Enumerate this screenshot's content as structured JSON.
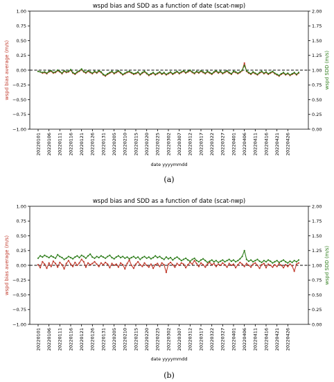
{
  "chart_data": [
    {
      "type": "line",
      "caption": "(a)",
      "title": "wspd bias and SDD as a function of date (scat-nwp)",
      "xlabel": "date yyyymmdd",
      "ylabel": "wspd bias average (m/s)",
      "ylabel_right": "wspd SDD (m/s)",
      "ylim": [
        -1.0,
        1.0
      ],
      "ylim_right": [
        0.0,
        2.0
      ],
      "yticks": [
        "1.00",
        "0.75",
        "0.50",
        "0.25",
        "0.00",
        "−0.25",
        "−0.50",
        "−0.75",
        "−1.00"
      ],
      "yticks_right": [
        "2.00",
        "1.75",
        "1.50",
        "1.25",
        "1.00",
        "0.75",
        "0.50",
        "0.25",
        "0.00"
      ],
      "xticks": [
        "20220101",
        "20220106",
        "20220111",
        "20220116",
        "20220121",
        "20220126",
        "20220131",
        "20220205",
        "20220210",
        "20220215",
        "20220220",
        "20220225",
        "20220302",
        "20220307",
        "20220312",
        "20220317",
        "20220322",
        "20220327",
        "20220401",
        "20220406",
        "20220411",
        "20220416",
        "20220421",
        "20220426"
      ],
      "x_range_days": 120,
      "zero_line": 0.0,
      "series": [
        {
          "axis": "left",
          "color": "#c0392b",
          "marker": "dot",
          "values": [
            -0.02,
            -0.03,
            -0.05,
            -0.04,
            -0.06,
            -0.03,
            -0.02,
            -0.05,
            -0.04,
            -0.01,
            -0.03,
            -0.06,
            -0.02,
            -0.04,
            -0.03,
            0.0,
            -0.05,
            -0.07,
            -0.04,
            -0.02,
            0.01,
            -0.03,
            -0.05,
            -0.02,
            -0.04,
            -0.06,
            -0.03,
            -0.05,
            -0.02,
            -0.04,
            -0.08,
            -0.1,
            -0.07,
            -0.05,
            -0.03,
            -0.06,
            -0.04,
            -0.02,
            -0.05,
            -0.08,
            -0.06,
            -0.04,
            -0.03,
            -0.05,
            -0.07,
            -0.06,
            -0.04,
            -0.08,
            -0.05,
            -0.03,
            -0.06,
            -0.09,
            -0.07,
            -0.05,
            -0.08,
            -0.06,
            -0.04,
            -0.07,
            -0.05,
            -0.08,
            -0.06,
            -0.04,
            -0.07,
            -0.05,
            -0.03,
            -0.06,
            -0.04,
            -0.02,
            -0.05,
            -0.03,
            -0.01,
            -0.04,
            -0.06,
            -0.03,
            -0.05,
            -0.02,
            -0.04,
            -0.06,
            -0.03,
            -0.05,
            -0.07,
            -0.04,
            -0.02,
            -0.05,
            -0.03,
            -0.06,
            -0.04,
            -0.02,
            -0.05,
            -0.07,
            -0.03,
            -0.04,
            -0.06,
            -0.04,
            -0.01,
            0.12,
            -0.02,
            -0.05,
            -0.07,
            -0.04,
            -0.06,
            -0.08,
            -0.05,
            -0.03,
            -0.06,
            -0.04,
            -0.07,
            -0.05,
            -0.03,
            -0.06,
            -0.08,
            -0.1,
            -0.07,
            -0.05,
            -0.08,
            -0.06,
            -0.09,
            -0.07,
            -0.05,
            -0.08,
            -0.05
          ]
        },
        {
          "axis": "right",
          "color": "#2e7d1b",
          "marker": "dot",
          "values": [
            0.98,
            0.97,
            0.96,
            0.97,
            0.95,
            0.98,
            0.99,
            0.96,
            0.97,
            1.0,
            0.98,
            0.95,
            0.99,
            0.97,
            0.98,
            1.01,
            0.96,
            0.94,
            0.97,
            0.99,
            1.02,
            0.98,
            0.96,
            0.99,
            0.97,
            0.95,
            0.98,
            0.96,
            0.99,
            0.97,
            0.93,
            0.91,
            0.94,
            0.96,
            0.98,
            0.95,
            0.97,
            0.99,
            0.96,
            0.93,
            0.95,
            0.97,
            0.98,
            0.96,
            0.94,
            0.95,
            0.97,
            0.93,
            0.96,
            0.98,
            0.95,
            0.92,
            0.94,
            0.96,
            0.93,
            0.95,
            0.97,
            0.94,
            0.96,
            0.93,
            0.95,
            0.97,
            0.94,
            0.96,
            0.98,
            0.95,
            0.97,
            0.99,
            0.96,
            0.98,
            1.0,
            0.97,
            0.95,
            0.98,
            0.96,
            0.99,
            0.97,
            0.95,
            0.98,
            0.96,
            0.94,
            0.97,
            0.99,
            0.96,
            0.98,
            0.95,
            0.97,
            0.99,
            0.96,
            0.94,
            0.98,
            0.97,
            0.95,
            0.97,
            1.0,
            1.08,
            0.99,
            0.96,
            0.94,
            0.97,
            0.95,
            0.93,
            0.96,
            0.98,
            0.95,
            0.97,
            0.94,
            0.96,
            0.98,
            0.95,
            0.93,
            0.91,
            0.94,
            0.96,
            0.93,
            0.95,
            0.92,
            0.94,
            0.96,
            0.93,
            0.96
          ]
        }
      ]
    },
    {
      "type": "line",
      "caption": "(b)",
      "title": "wspd bias and SDD as a function of date (scat-nwp)",
      "xlabel": "date yyyymmdd",
      "ylabel": "wspd bias average (m/s)",
      "ylabel_right": "wspd SDD (m/s)",
      "ylim": [
        -1.0,
        1.0
      ],
      "ylim_right": [
        0.0,
        2.0
      ],
      "yticks": [
        "1.00",
        "0.75",
        "0.50",
        "0.25",
        "0.00",
        "−0.25",
        "−0.50",
        "−0.75",
        "−1.00"
      ],
      "yticks_right": [
        "2.00",
        "1.75",
        "1.50",
        "1.25",
        "1.00",
        "0.75",
        "0.50",
        "0.25",
        "0.00"
      ],
      "xticks": [
        "20220101",
        "20220106",
        "20220111",
        "20220116",
        "20220121",
        "20220126",
        "20220131",
        "20220205",
        "20220210",
        "20220215",
        "20220220",
        "20220225",
        "20220302",
        "20220307",
        "20220312",
        "20220317",
        "20220322",
        "20220327",
        "20220401",
        "20220406",
        "20220411",
        "20220416",
        "20220421",
        "20220426"
      ],
      "x_range_days": 120,
      "zero_line": 0.0,
      "series": [
        {
          "axis": "left",
          "color": "#c0392b",
          "marker": "dot",
          "values": [
            0.01,
            -0.04,
            0.06,
            0.02,
            -0.05,
            0.04,
            -0.02,
            0.07,
            0.03,
            -0.03,
            0.05,
            0.01,
            -0.06,
            0.03,
            0.08,
            0.02,
            -0.02,
            0.05,
            0.0,
            0.04,
            0.1,
            0.06,
            -0.03,
            0.04,
            0.01,
            0.03,
            0.06,
            0.02,
            -0.02,
            0.04,
            0.01,
            0.05,
            0.02,
            -0.04,
            0.03,
            0.0,
            0.02,
            -0.03,
            0.04,
            0.01,
            -0.06,
            0.03,
            0.09,
            0.0,
            -0.05,
            0.02,
            0.06,
            0.01,
            -0.02,
            0.04,
            0.0,
            -0.03,
            0.02,
            -0.05,
            0.01,
            0.03,
            -0.02,
            0.04,
            0.01,
            -0.12,
            0.02,
            0.05,
            0.01,
            -0.03,
            0.03,
            0.0,
            0.04,
            0.02,
            -0.04,
            0.01,
            0.05,
            0.02,
            0.08,
            0.03,
            -0.02,
            0.04,
            0.01,
            -0.03,
            0.02,
            0.05,
            0.01,
            0.03,
            -0.02,
            0.02,
            0.0,
            0.04,
            0.01,
            -0.03,
            0.03,
            0.0,
            0.02,
            -0.04,
            0.01,
            0.05,
            0.02,
            -0.02,
            0.03,
            0.0,
            -0.03,
            0.02,
            0.04,
            0.0,
            -0.05,
            0.01,
            0.03,
            -0.04,
            0.02,
            0.0,
            -0.03,
            0.01,
            -0.02,
            0.03,
            0.0,
            -0.04,
            0.01,
            -0.02,
            0.02,
            -0.01,
            -0.1,
            0.02,
            0.04
          ]
        },
        {
          "axis": "right",
          "color": "#2e7d1b",
          "marker": "dot",
          "values": [
            1.12,
            1.16,
            1.14,
            1.17,
            1.15,
            1.13,
            1.16,
            1.14,
            1.12,
            1.18,
            1.15,
            1.13,
            1.1,
            1.12,
            1.15,
            1.13,
            1.11,
            1.14,
            1.16,
            1.13,
            1.17,
            1.15,
            1.12,
            1.16,
            1.19,
            1.14,
            1.12,
            1.15,
            1.13,
            1.16,
            1.14,
            1.12,
            1.15,
            1.17,
            1.13,
            1.11,
            1.14,
            1.16,
            1.13,
            1.15,
            1.12,
            1.14,
            1.11,
            1.13,
            1.15,
            1.12,
            1.14,
            1.1,
            1.13,
            1.15,
            1.12,
            1.14,
            1.11,
            1.13,
            1.16,
            1.13,
            1.15,
            1.12,
            1.1,
            1.14,
            1.11,
            1.13,
            1.09,
            1.12,
            1.14,
            1.11,
            1.08,
            1.1,
            1.12,
            1.09,
            1.07,
            1.1,
            1.12,
            1.08,
            1.06,
            1.09,
            1.11,
            1.08,
            1.05,
            1.07,
            1.09,
            1.06,
            1.08,
            1.05,
            1.07,
            1.09,
            1.06,
            1.08,
            1.1,
            1.07,
            1.09,
            1.06,
            1.08,
            1.11,
            1.15,
            1.25,
            1.1,
            1.07,
            1.09,
            1.06,
            1.08,
            1.1,
            1.07,
            1.05,
            1.08,
            1.06,
            1.09,
            1.07,
            1.04,
            1.06,
            1.08,
            1.05,
            1.07,
            1.09,
            1.06,
            1.04,
            1.07,
            1.05,
            1.08,
            1.06,
            1.09
          ]
        }
      ]
    }
  ]
}
